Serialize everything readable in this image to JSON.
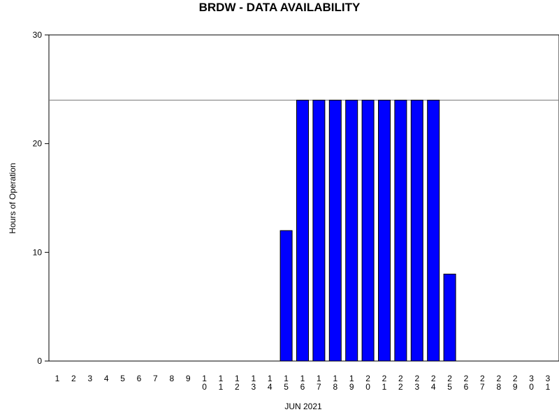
{
  "chart_data": {
    "type": "bar",
    "title": "BRDW - DATA AVAILABILITY",
    "xlabel": "JUN 2021",
    "ylabel": "Hours of Operation",
    "ylim": [
      0,
      30
    ],
    "yticks": [
      "0",
      "10",
      "20",
      "30"
    ],
    "reference_line": 24,
    "grid": false,
    "categories": [
      "1",
      "2",
      "3",
      "4",
      "5",
      "6",
      "7",
      "8",
      "9",
      "10",
      "11",
      "12",
      "13",
      "14",
      "15",
      "16",
      "17",
      "18",
      "19",
      "20",
      "21",
      "22",
      "23",
      "24",
      "25",
      "26",
      "27",
      "28",
      "29",
      "30",
      "31"
    ],
    "values": [
      0,
      0,
      0,
      0,
      0,
      0,
      0,
      0,
      0,
      0,
      0,
      0,
      0,
      0,
      12,
      24,
      24,
      24,
      24,
      24,
      24,
      24,
      24,
      24,
      8,
      0,
      0,
      0,
      0,
      0,
      0
    ],
    "bar_color": "#0000ff"
  }
}
